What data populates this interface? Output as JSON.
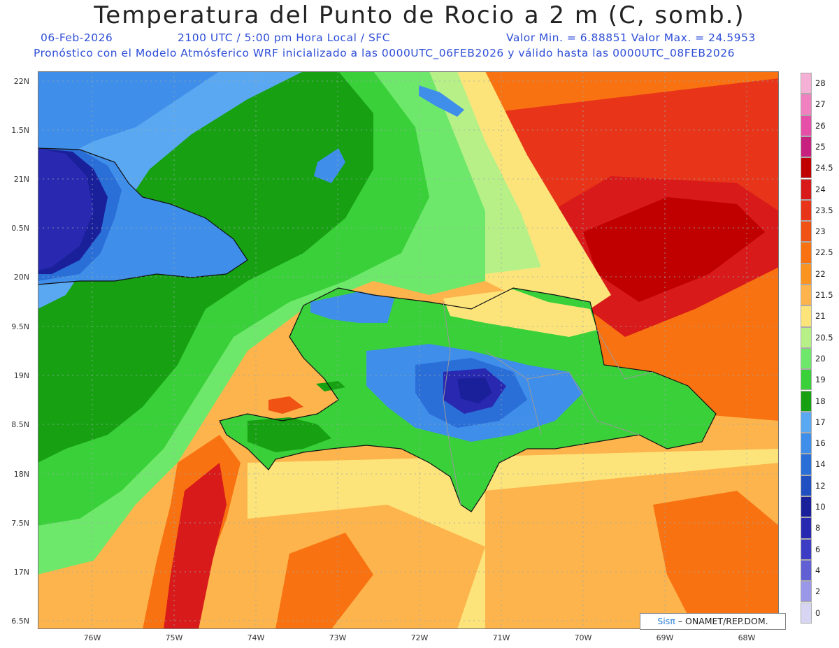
{
  "title": "Temperatura del Punto de Rocio a 2 m (C, somb.)",
  "line1": {
    "date": "06-Feb-2026",
    "time": "2100 UTC / 5:00 pm Hora Local / SFC",
    "minmax": "Valor Min. = 6.88851  Valor Max. = 24.5953"
  },
  "line2": "Pronóstico con el Modelo Atmósferico WRF inicializado a las 0000UTC_06FEB2026 y válido hasta las  0000UTC_08FEB2026",
  "lat_labels": [
    "22N",
    "1.5N",
    "21N",
    "0.5N",
    "20N",
    "9.5N",
    "19N",
    "8.5N",
    "18N",
    "7.5N",
    "17N",
    "6.5N"
  ],
  "lon_labels": [
    "76W",
    "75W",
    "74W",
    "73W",
    "72W",
    "71W",
    "70W",
    "69W",
    "68W"
  ],
  "colorbar": {
    "labels": [
      "28",
      "27",
      "26",
      "25",
      "24.5",
      "24",
      "23.5",
      "23",
      "22.5",
      "22",
      "21.5",
      "21",
      "20.5",
      "20",
      "19",
      "18",
      "17",
      "16",
      "14",
      "12",
      "10",
      "8",
      "6",
      "4",
      "2",
      "0"
    ],
    "colors": [
      "#f5b0d6",
      "#f080c0",
      "#e64fa8",
      "#c8207e",
      "#c00000",
      "#d81a1a",
      "#e83418",
      "#f05214",
      "#f87212",
      "#fb9420",
      "#fdb44c",
      "#fde47a",
      "#b8f088",
      "#6ee86a",
      "#3ad03a",
      "#16a012",
      "#5aa8f2",
      "#3f8eea",
      "#2a6ed8",
      "#1f4fc0",
      "#1a1f9a",
      "#2828b0",
      "#3c3cc4",
      "#6060d4",
      "#9a96e8",
      "#d6d6f2"
    ]
  },
  "credit": {
    "sis": "Sisπ",
    "rest": "– ONAMET/REP.DOM."
  }
}
